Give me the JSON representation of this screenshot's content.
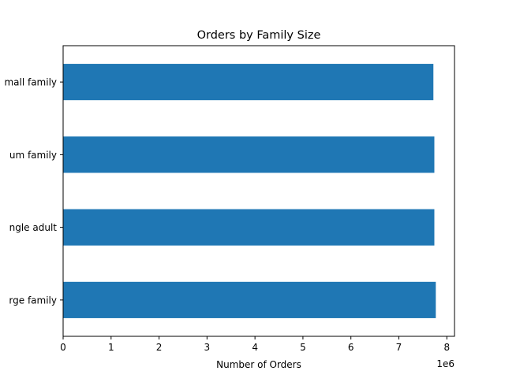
{
  "chart_data": {
    "type": "bar",
    "orientation": "horizontal",
    "title": "Orders by Family Size",
    "xlabel": "Number of Orders",
    "ylabel": "",
    "x_offset_label": "1e6",
    "categories": [
      "small family",
      "medium family",
      "single adult",
      "large family"
    ],
    "category_labels_visible": [
      "mall family",
      "um family",
      "ngle adult",
      "rge family"
    ],
    "values": [
      7720000,
      7740000,
      7740000,
      7770000
    ],
    "x_ticks": [
      0,
      1000000,
      2000000,
      3000000,
      4000000,
      5000000,
      6000000,
      7000000,
      8000000
    ],
    "x_tick_labels": [
      "0",
      "1",
      "2",
      "3",
      "4",
      "5",
      "6",
      "7",
      "8"
    ],
    "xlim": [
      0,
      8160000
    ],
    "bar_color": "#1f77b4",
    "grid": false,
    "legend": "none"
  }
}
